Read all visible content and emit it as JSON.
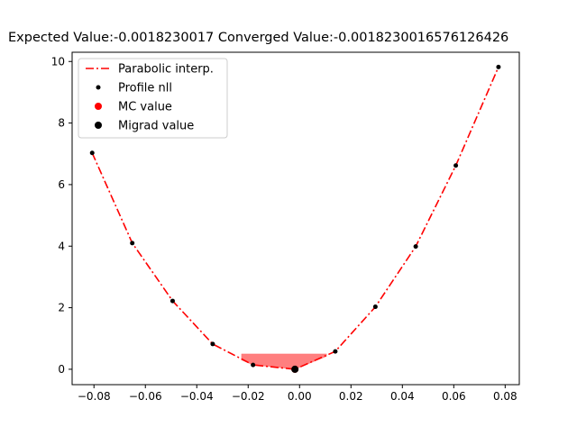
{
  "chart_data": {
    "type": "line",
    "title": "Expected Value:-0.0018230017 Converged Value:-0.0018230016576126426",
    "xlabel": "",
    "ylabel": "",
    "xlim": [
      -0.0885,
      0.0855
    ],
    "ylim": [
      -0.5,
      10.3
    ],
    "xticks": [
      -0.08,
      -0.06,
      -0.04,
      -0.02,
      0.0,
      0.02,
      0.04,
      0.06,
      0.08
    ],
    "xtick_labels": [
      "−0.08",
      "−0.06",
      "−0.04",
      "−0.02",
      "0.00",
      "0.02",
      "0.04",
      "0.06",
      "0.08"
    ],
    "yticks": [
      0,
      2,
      4,
      6,
      8,
      10
    ],
    "ytick_labels": [
      "0",
      "2",
      "4",
      "6",
      "8",
      "10"
    ],
    "grid": false,
    "legend_position": "upper-left",
    "series": [
      {
        "name": "Parabolic interp.",
        "kind": "line",
        "style": "dash-dot",
        "color": "#ff0000",
        "x": [
          -0.0807,
          -0.0651,
          -0.0494,
          -0.0338,
          -0.0181,
          -0.0018,
          0.0139,
          0.0295,
          0.0452,
          0.0608,
          0.0774
        ],
        "y": [
          7.03,
          4.1,
          2.22,
          0.82,
          0.14,
          0.0,
          0.58,
          2.03,
          3.99,
          6.62,
          9.82
        ]
      },
      {
        "name": "Profile nll",
        "kind": "points",
        "marker": "small-dot",
        "color": "#000000",
        "x": [
          -0.0807,
          -0.0651,
          -0.0494,
          -0.0338,
          -0.0181,
          0.0139,
          0.0295,
          0.0452,
          0.0608,
          0.0774
        ],
        "y": [
          7.03,
          4.1,
          2.22,
          0.82,
          0.14,
          0.58,
          2.03,
          3.99,
          6.62,
          9.82
        ]
      },
      {
        "name": "MC value",
        "kind": "point",
        "marker": "dot",
        "color": "#ff0000",
        "x": [
          -0.0018
        ],
        "y": [
          0.0
        ]
      },
      {
        "name": "Migrad value",
        "kind": "point",
        "marker": "dot",
        "color": "#000000",
        "x": [
          -0.0018
        ],
        "y": [
          0.0
        ]
      }
    ],
    "interval": {
      "color": "#ff0000",
      "opacity": 0.5,
      "level": 0.5,
      "x": [
        -0.0226,
        -0.0181,
        -0.0018,
        0.0105
      ],
      "lower": [
        0.3,
        0.14,
        0.0,
        0.42
      ]
    }
  }
}
